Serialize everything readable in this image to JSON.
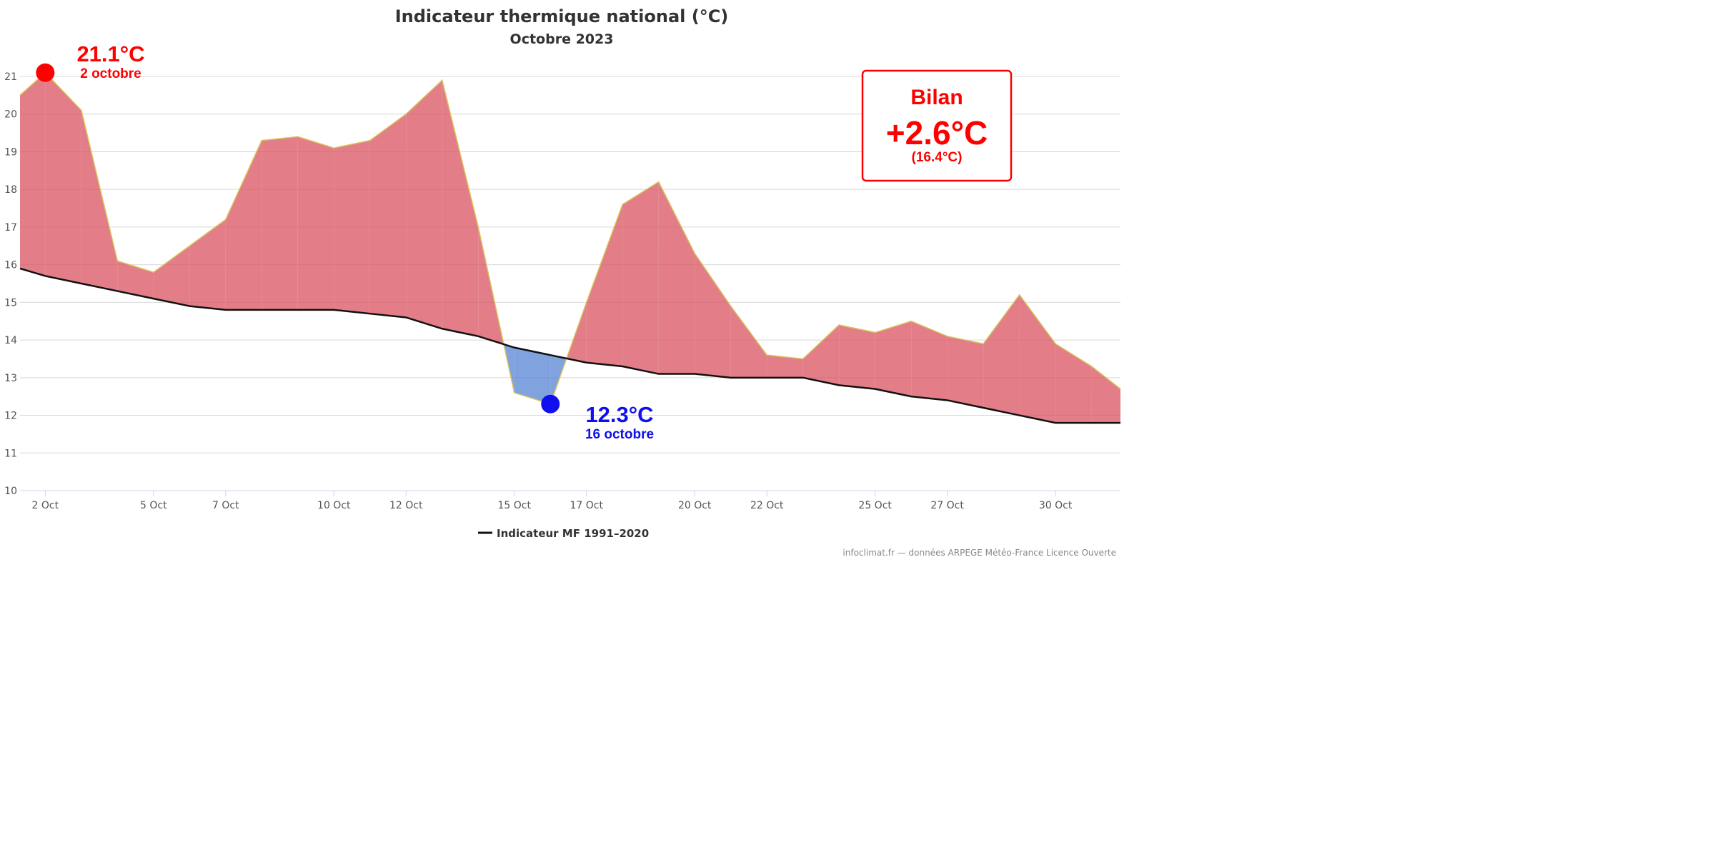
{
  "chart_data": {
    "type": "area",
    "title": "Indicateur thermique national (°C)",
    "subtitle": "Octobre 2023",
    "ylim": [
      10,
      21
    ],
    "yticks": [
      10,
      11,
      12,
      13,
      14,
      15,
      16,
      17,
      18,
      19,
      20,
      21
    ],
    "xlim": [
      1.3,
      31.8
    ],
    "xticks": [
      {
        "x": 2,
        "label": "2 Oct"
      },
      {
        "x": 5,
        "label": "5 Oct"
      },
      {
        "x": 7,
        "label": "7 Oct"
      },
      {
        "x": 10,
        "label": "10 Oct"
      },
      {
        "x": 12,
        "label": "12 Oct"
      },
      {
        "x": 15,
        "label": "15 Oct"
      },
      {
        "x": 17,
        "label": "17 Oct"
      },
      {
        "x": 20,
        "label": "20 Oct"
      },
      {
        "x": 22,
        "label": "22 Oct"
      },
      {
        "x": 25,
        "label": "25 Oct"
      },
      {
        "x": 27,
        "label": "27 Oct"
      },
      {
        "x": 30,
        "label": "30 Oct"
      }
    ],
    "grid": true,
    "series": [
      {
        "kind": "observed",
        "x": [
          1.3,
          2,
          3,
          4,
          5,
          6,
          7,
          8,
          9,
          10,
          11,
          12,
          13,
          14,
          15,
          16,
          17,
          18,
          19,
          20,
          21,
          22,
          23,
          24,
          25,
          26,
          27,
          28,
          29,
          30,
          31,
          31.8
        ],
        "values": [
          20.5,
          21.1,
          20.1,
          16.1,
          15.8,
          16.5,
          17.2,
          19.3,
          19.4,
          19.1,
          19.3,
          20.0,
          20.9,
          17.0,
          12.6,
          12.3,
          15.0,
          17.6,
          18.2,
          16.3,
          14.9,
          13.6,
          13.5,
          14.4,
          14.2,
          14.5,
          14.1,
          13.9,
          15.2,
          13.9,
          13.3,
          12.7
        ]
      },
      {
        "name": "Indicateur MF 1991-2020",
        "kind": "normal",
        "x": [
          1.3,
          2,
          3,
          4,
          5,
          6,
          7,
          8,
          9,
          10,
          11,
          12,
          13,
          14,
          15,
          16,
          17,
          18,
          19,
          20,
          21,
          22,
          23,
          24,
          25,
          26,
          27,
          28,
          29,
          30,
          31,
          31.8
        ],
        "values": [
          15.9,
          15.7,
          15.5,
          15.3,
          15.1,
          14.9,
          14.8,
          14.8,
          14.8,
          14.8,
          14.7,
          14.6,
          14.3,
          14.1,
          13.8,
          13.6,
          13.4,
          13.3,
          13.1,
          13.1,
          13.0,
          13.0,
          13.0,
          12.8,
          12.7,
          12.5,
          12.4,
          12.2,
          12.0,
          11.8,
          11.8,
          11.8
        ]
      }
    ],
    "annotations": {
      "max": {
        "x": 2,
        "y": 21.1,
        "value": "21.1°C",
        "date": "2 octobre",
        "color": "#ff0000"
      },
      "min": {
        "x": 16,
        "y": 12.3,
        "value": "12.3°C",
        "date": "16 octobre",
        "color": "#1010ee"
      },
      "bilan": {
        "label": "Bilan",
        "anomaly": "+2.6°C",
        "mean": "(16.4°C)",
        "color": "#ff0000"
      }
    },
    "colors": {
      "above": "#d95360",
      "below": "#5584d4",
      "observed_line": "#d8c45a",
      "normal_line": "#111111",
      "grid": "#d8d8d8"
    },
    "legend": {
      "label": "Indicateur MF 1991–2020",
      "position": "bottom"
    },
    "credit": "infoclimat.fr — données ARPEGE Météo-France Licence Ouverte"
  }
}
